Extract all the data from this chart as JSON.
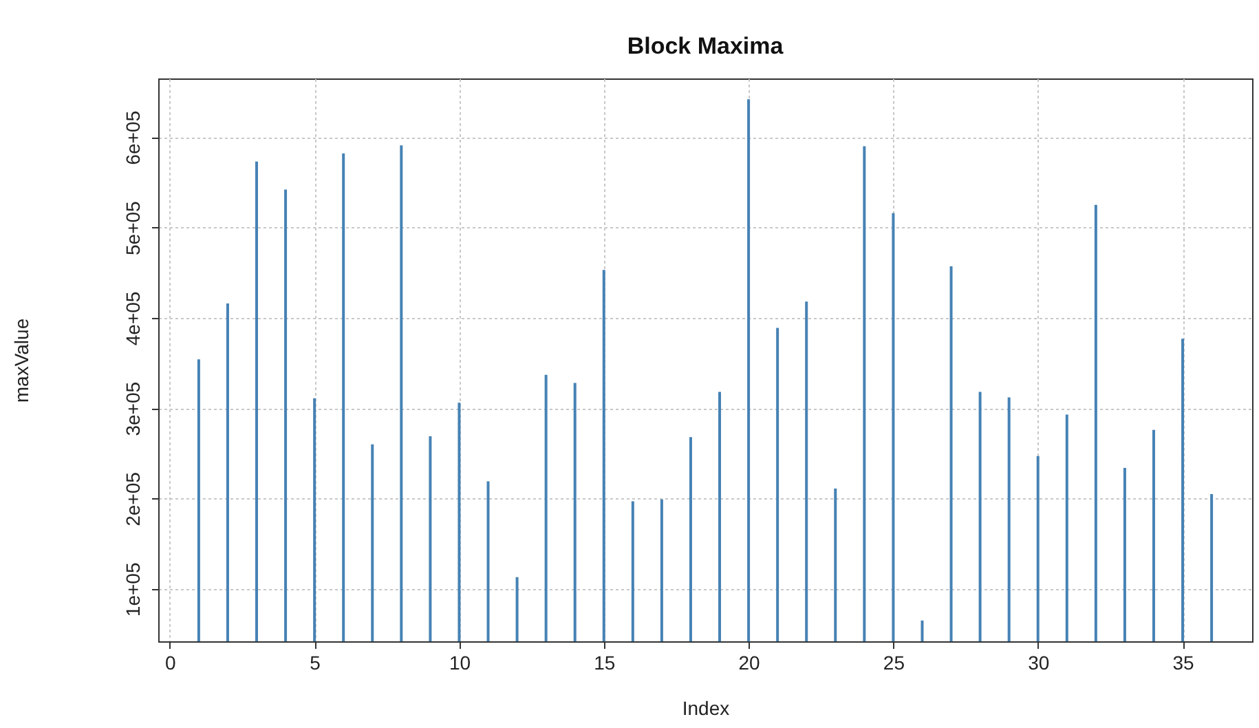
{
  "chart_data": {
    "type": "bar",
    "title": "Block Maxima",
    "xlabel": "Index",
    "ylabel": "maxValue",
    "x": [
      1,
      2,
      3,
      4,
      5,
      6,
      7,
      8,
      9,
      10,
      11,
      12,
      13,
      14,
      15,
      16,
      17,
      18,
      19,
      20,
      21,
      22,
      23,
      24,
      25,
      26,
      27,
      28,
      29,
      30,
      31,
      32,
      33,
      34,
      35,
      36
    ],
    "values": [
      354000,
      416000,
      573000,
      542000,
      311000,
      582000,
      260000,
      591000,
      269000,
      306000,
      219000,
      113000,
      337000,
      328000,
      453000,
      197000,
      199000,
      268000,
      318000,
      642000,
      389000,
      418000,
      211000,
      590000,
      516000,
      65000,
      457000,
      318000,
      312000,
      247000,
      293000,
      525000,
      234000,
      276000,
      377000,
      205000
    ],
    "color": "#4682b4",
    "xlim": [
      -0.4,
      37.4
    ],
    "xticks": [
      0,
      5,
      10,
      15,
      20,
      25,
      30,
      35
    ],
    "ylim": [
      42000,
      665000
    ],
    "yticks": [
      {
        "value": 100000,
        "label": "1e+05"
      },
      {
        "value": 200000,
        "label": "2e+05"
      },
      {
        "value": 300000,
        "label": "3e+05"
      },
      {
        "value": 400000,
        "label": "4e+05"
      },
      {
        "value": 500000,
        "label": "5e+05"
      },
      {
        "value": 600000,
        "label": "6e+05"
      }
    ],
    "grid": true
  }
}
